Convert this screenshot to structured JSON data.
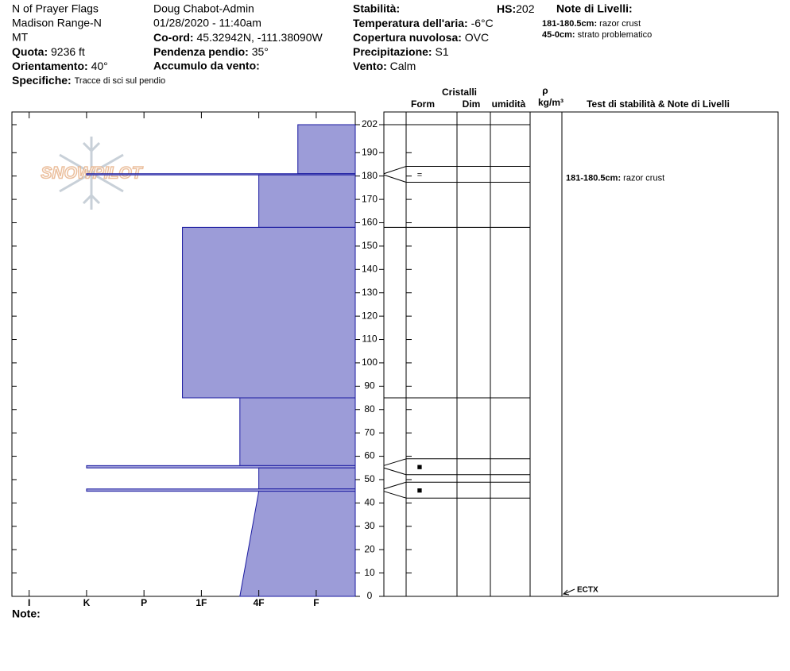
{
  "header": {
    "location": [
      "N of Prayer Flags",
      "Madison Range-N",
      "MT"
    ],
    "elevation": {
      "label": "Quota:",
      "value": "9236 ft"
    },
    "aspect": {
      "label": "Orientamento:",
      "value": "40°"
    },
    "specifics": {
      "label": "Specifiche:",
      "value": "Tracce di sci sul pendio"
    },
    "observer": "Doug Chabot-Admin",
    "datetime": "01/28/2020 - 11:40am",
    "coords": {
      "label": "Co-ord:",
      "value": "45.32942N, -111.38090W"
    },
    "slope": {
      "label": "Pendenza pendio:",
      "value": "35°"
    },
    "wind_loading": {
      "label": "Accumulo da vento:"
    },
    "stability": {
      "label": "Stabilità:"
    },
    "hs": {
      "label": "HS:",
      "value": 202
    },
    "air_temp": {
      "label": "Temperatura dell'aria:",
      "value": "-6°C"
    },
    "sky": {
      "label": "Copertura nuvolosa:",
      "value": "OVC"
    },
    "precip": {
      "label": "Precipitazione:",
      "value": "S1"
    },
    "wind": {
      "label": "Vento:",
      "value": "Calm"
    },
    "layer_notes_title": "Note di Livelli:",
    "layer_notes": [
      {
        "label": "181-180.5cm:",
        "text": "razor crust"
      },
      {
        "label": "45-0cm:",
        "text": "strato problematico"
      }
    ]
  },
  "chart_data": {
    "type": "snow-profile",
    "logo": "SNOWPILOT",
    "columns": {
      "crystals": "Cristalli",
      "form": "Form",
      "size": "Dim",
      "wetness": "umidità",
      "rho": "ρ",
      "density_unit": "kg/m³",
      "tests": "Test di stabilità & Note di Livelli"
    },
    "ylim": [
      0,
      202
    ],
    "yticks": [
      0,
      10,
      20,
      30,
      40,
      50,
      60,
      70,
      80,
      90,
      100,
      110,
      120,
      130,
      140,
      150,
      160,
      170,
      180,
      190,
      202
    ],
    "xlim": [
      6.3,
      0.32
    ],
    "xticks": [
      {
        "value": 6,
        "label": "I"
      },
      {
        "value": 5,
        "label": "K"
      },
      {
        "value": 4,
        "label": "P"
      },
      {
        "value": 3,
        "label": "1F"
      },
      {
        "value": 2,
        "label": "4F"
      },
      {
        "value": 1,
        "label": "F"
      }
    ],
    "color": "#9c9cd8",
    "edge_color": "#1a1aa0",
    "layers": [
      {
        "top": 202,
        "bottom": 181,
        "hardness_top": 1.32,
        "hardness_bottom": 1.32
      },
      {
        "top": 181,
        "bottom": 180.5,
        "hardness_top": 5,
        "hardness_bottom": 5,
        "grain": "="
      },
      {
        "top": 180.5,
        "bottom": 158,
        "hardness_top": 2,
        "hardness_bottom": 2
      },
      {
        "top": 158,
        "bottom": 85,
        "hardness_top": 3.33,
        "hardness_bottom": 3.33
      },
      {
        "top": 85,
        "bottom": 56,
        "hardness_top": 2.33,
        "hardness_bottom": 2.33
      },
      {
        "top": 56,
        "bottom": 55,
        "hardness_top": 5,
        "hardness_bottom": 5,
        "grain": "■"
      },
      {
        "top": 55,
        "bottom": 46,
        "hardness_top": 2,
        "hardness_bottom": 2
      },
      {
        "top": 46,
        "bottom": 45,
        "hardness_top": 5,
        "hardness_bottom": 5,
        "grain": "■"
      },
      {
        "top": 45,
        "bottom": 0,
        "hardness_top": 2,
        "hardness_bottom": 2.33
      }
    ],
    "profile_notes": [
      {
        "height": 180.75,
        "label": "181-180.5cm:",
        "text": "razor crust"
      }
    ],
    "stability_tests": [
      {
        "height": 0,
        "label": "ECTX"
      }
    ],
    "note_label": "Note:"
  }
}
